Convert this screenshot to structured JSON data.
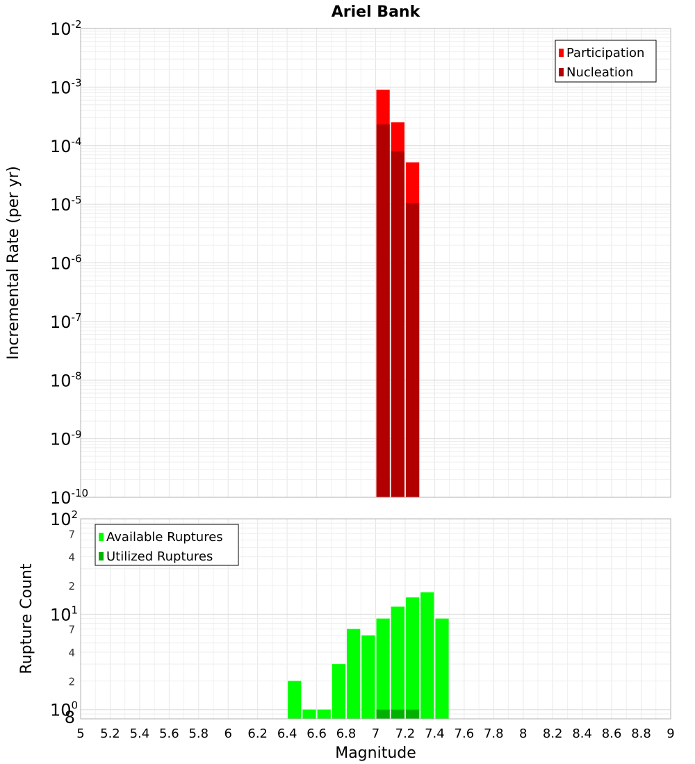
{
  "chart_data": [
    {
      "type": "bar",
      "title": "Ariel Bank",
      "xlabel": "",
      "ylabel": "Incremental Rate (per yr)",
      "xlim": [
        5,
        9
      ],
      "ylim": [
        1e-10,
        0.01
      ],
      "yscale": "log",
      "bin_width": 0.1,
      "grid": true,
      "legend_position": "top-right",
      "y_ticks": [
        {
          "base": "10",
          "exp": "-10",
          "value": 1e-10
        },
        {
          "base": "10",
          "exp": "-9",
          "value": 1e-09
        },
        {
          "base": "10",
          "exp": "-8",
          "value": 1e-08
        },
        {
          "base": "10",
          "exp": "-7",
          "value": 1e-07
        },
        {
          "base": "10",
          "exp": "-6",
          "value": 1e-06
        },
        {
          "base": "10",
          "exp": "-5",
          "value": 1e-05
        },
        {
          "base": "10",
          "exp": "-4",
          "value": 0.0001
        },
        {
          "base": "10",
          "exp": "-3",
          "value": 0.001
        },
        {
          "base": "10",
          "exp": "-2",
          "value": 0.01
        }
      ],
      "series": [
        {
          "name": "Participation",
          "color": "#ff0000",
          "x": [
            7.05,
            7.15,
            7.25
          ],
          "values": [
            0.0009,
            0.00025,
            5.2e-05
          ]
        },
        {
          "name": "Nucleation",
          "color": "#b20000",
          "x": [
            7.05,
            7.15,
            7.25
          ],
          "values": [
            0.00023,
            8e-05,
            1.05e-05
          ]
        }
      ]
    },
    {
      "type": "bar",
      "title": "",
      "xlabel": "Magnitude",
      "ylabel": "Rupture Count",
      "xlim": [
        5,
        9
      ],
      "ylim": [
        0.8,
        100
      ],
      "yscale": "log",
      "bin_width": 0.1,
      "grid": true,
      "legend_position": "top-left",
      "x_ticks": [
        "5",
        "5.2",
        "5.4",
        "5.6",
        "5.8",
        "6",
        "6.2",
        "6.4",
        "6.6",
        "6.8",
        "7",
        "7.2",
        "7.4",
        "7.6",
        "7.8",
        "8",
        "8.2",
        "8.4",
        "8.6",
        "8.8",
        "9"
      ],
      "y_major_ticks": [
        {
          "base": "10",
          "exp": "0",
          "value": 1
        },
        {
          "base": "10",
          "exp": "1",
          "value": 10
        },
        {
          "base": "10",
          "exp": "2",
          "value": 100
        }
      ],
      "y_minor_ticks": [
        {
          "label": "8",
          "value": 0.8
        },
        {
          "label": "2",
          "value": 2
        },
        {
          "label": "4",
          "value": 4
        },
        {
          "label": "7",
          "value": 7
        },
        {
          "label": "2",
          "value": 20
        },
        {
          "label": "4",
          "value": 40
        },
        {
          "label": "7",
          "value": 70
        }
      ],
      "series": [
        {
          "name": "Available Ruptures",
          "color": "#00ff00",
          "x": [
            6.45,
            6.55,
            6.65,
            6.75,
            6.85,
            6.95,
            7.05,
            7.15,
            7.25,
            7.35,
            7.45
          ],
          "values": [
            2,
            1,
            1,
            3,
            7,
            6,
            9,
            12,
            15,
            17,
            9
          ]
        },
        {
          "name": "Utilized Ruptures",
          "color": "#00b200",
          "x": [
            7.05,
            7.15,
            7.25
          ],
          "values": [
            1,
            1,
            1
          ]
        }
      ]
    }
  ]
}
